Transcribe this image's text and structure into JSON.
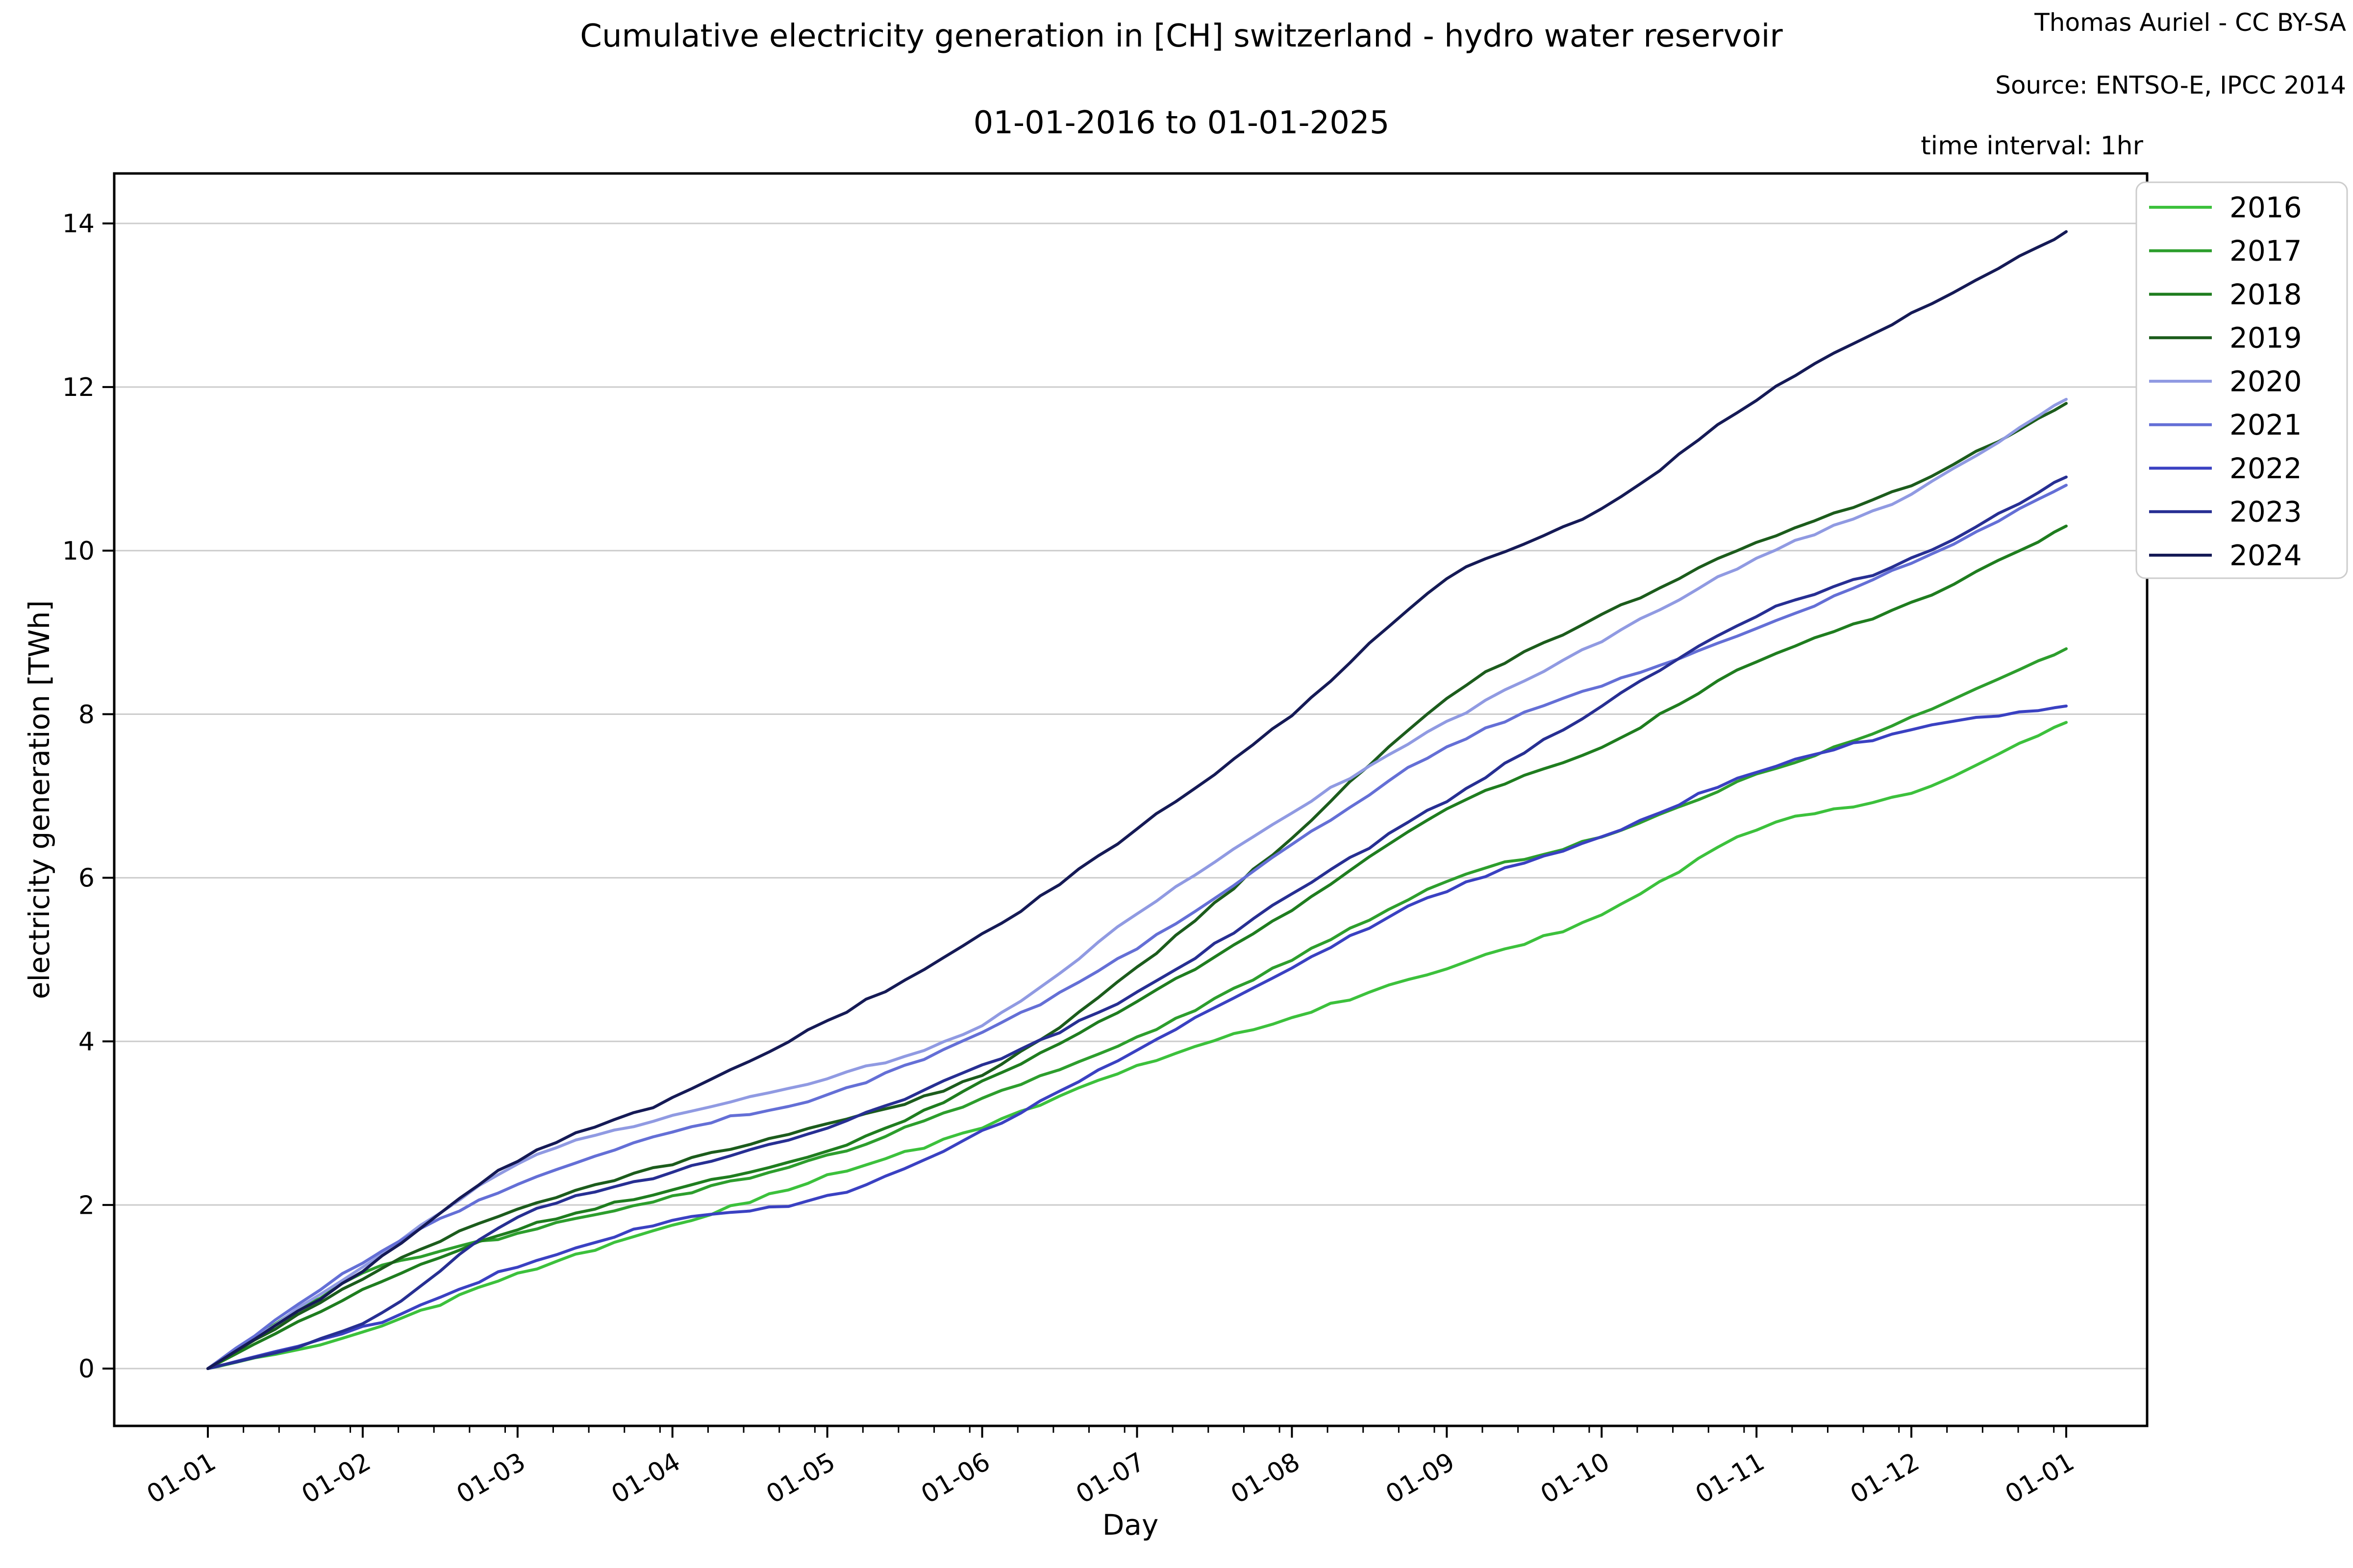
{
  "header": {
    "title_line1": "Cumulative electricity generation in [CH] switzerland - hydro water reservoir",
    "title_line2": "01-01-2016 to 01-01-2025",
    "attribution_line1": "Thomas Auriel - CC BY-SA",
    "attribution_line2": "Source: ENTSO-E, IPCC 2014",
    "time_interval_note": "time interval: 1hr"
  },
  "chart_data": {
    "type": "line",
    "title": "Cumulative electricity generation in [CH] switzerland - hydro water reservoir 01-01-2016 to 01-01-2025",
    "xlabel": "Day",
    "ylabel": "electricity generation [TWh]",
    "x_tick_labels": [
      "01-01",
      "01-02",
      "01-03",
      "01-04",
      "01-05",
      "01-06",
      "01-07",
      "01-08",
      "01-09",
      "01-10",
      "01-11",
      "01-12",
      "01-01"
    ],
    "x_months": [
      0,
      1,
      2,
      3,
      4,
      5,
      6,
      7,
      8,
      9,
      10,
      11,
      12
    ],
    "y_ticks": [
      0,
      2,
      4,
      6,
      8,
      10,
      12,
      14
    ],
    "ylim": [
      -0.7,
      14.6
    ],
    "grid": "horizontal",
    "legend_position": "right",
    "series": [
      {
        "name": "2016",
        "color": "#3cc13c",
        "values": [
          0,
          0.45,
          1.15,
          1.75,
          2.35,
          2.95,
          3.7,
          4.3,
          4.9,
          5.55,
          6.6,
          7.05,
          7.9
        ]
      },
      {
        "name": "2017",
        "color": "#2d9e2d",
        "values": [
          0,
          1.15,
          1.65,
          2.1,
          2.6,
          3.3,
          4.05,
          5.0,
          5.95,
          6.5,
          7.25,
          7.95,
          8.8
        ]
      },
      {
        "name": "2018",
        "color": "#1f7d1f",
        "values": [
          0,
          0.95,
          1.7,
          2.2,
          2.65,
          3.5,
          4.5,
          5.6,
          6.85,
          7.6,
          8.65,
          9.35,
          10.3
        ]
      },
      {
        "name": "2019",
        "color": "#1c5c1c",
        "values": [
          0,
          1.1,
          1.95,
          2.5,
          3.0,
          3.6,
          4.9,
          6.5,
          8.2,
          9.2,
          10.1,
          10.8,
          11.8
        ]
      },
      {
        "name": "2020",
        "color": "#909ae2",
        "values": [
          0,
          1.25,
          2.5,
          3.1,
          3.55,
          4.2,
          5.55,
          6.8,
          7.9,
          8.9,
          9.9,
          10.7,
          11.85
        ]
      },
      {
        "name": "2021",
        "color": "#646fd6",
        "values": [
          0,
          1.3,
          2.25,
          2.9,
          3.35,
          4.1,
          5.15,
          6.4,
          7.6,
          8.35,
          9.05,
          9.85,
          10.8
        ]
      },
      {
        "name": "2022",
        "color": "#3a41c2",
        "values": [
          0,
          0.5,
          1.25,
          1.8,
          2.1,
          2.9,
          3.9,
          4.9,
          5.85,
          6.5,
          7.3,
          7.8,
          8.1
        ]
      },
      {
        "name": "2023",
        "color": "#272f93",
        "values": [
          0,
          0.55,
          1.85,
          2.4,
          2.95,
          3.7,
          4.6,
          5.8,
          6.95,
          8.1,
          9.2,
          9.9,
          10.9
        ]
      },
      {
        "name": "2024",
        "color": "#151a56",
        "values": [
          0,
          1.2,
          2.55,
          3.3,
          4.25,
          5.3,
          6.6,
          8.0,
          9.65,
          10.5,
          11.85,
          12.9,
          13.9
        ]
      }
    ]
  },
  "colors": {
    "background": "#ffffff",
    "grid": "#cccccc",
    "spine": "#000000",
    "tick_label": "#000000",
    "legend_border": "#cccccc"
  }
}
